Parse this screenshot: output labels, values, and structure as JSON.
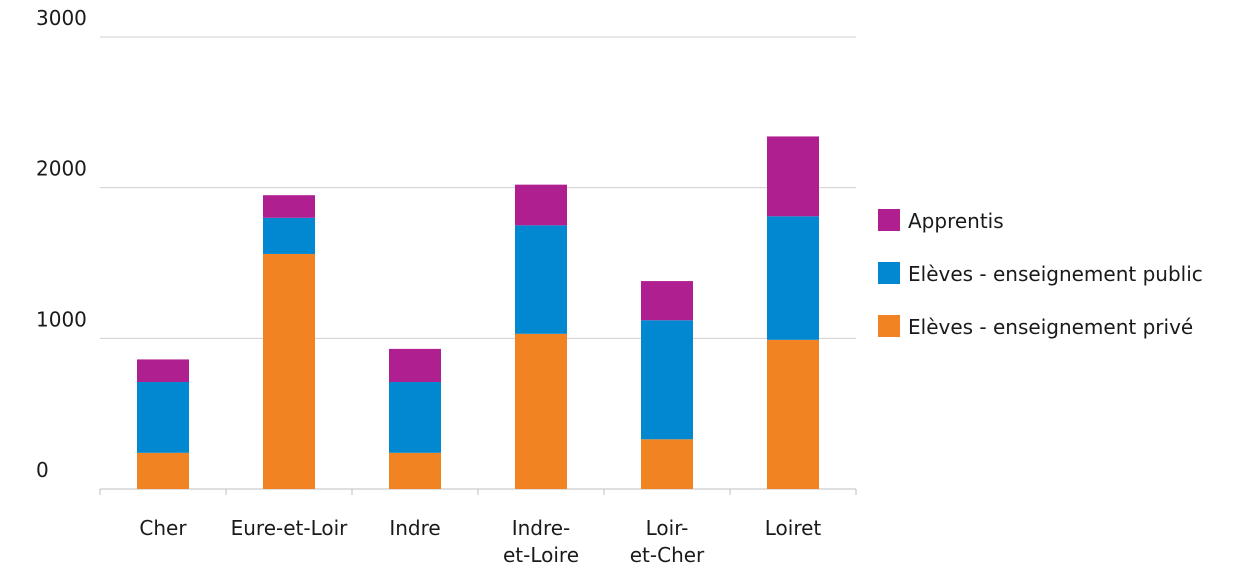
{
  "chart_data": {
    "type": "bar",
    "stacked": true,
    "title": "",
    "xlabel": "",
    "ylabel": "",
    "ylim": [
      0,
      3000
    ],
    "yticks": [
      "0",
      "1000",
      "2000",
      "3000"
    ],
    "grid": true,
    "legend_position": "right",
    "categories": [
      [
        "Cher"
      ],
      [
        "Eure-et-Loir"
      ],
      [
        "Indre"
      ],
      [
        "Indre-",
        "et-Loire"
      ],
      [
        "Loir-",
        "et-Cher"
      ],
      [
        "Loiret"
      ]
    ],
    "series": [
      {
        "name": "Elèves - enseignement privé",
        "color": "#f28322",
        "values": [
          240,
          1560,
          240,
          1030,
          330,
          990
        ]
      },
      {
        "name": "Elèves - enseignement public",
        "color": "#0288d1",
        "values": [
          470,
          240,
          470,
          720,
          790,
          820
        ]
      },
      {
        "name": "Apprentis",
        "color": "#b01f8f",
        "values": [
          150,
          150,
          220,
          270,
          260,
          530
        ]
      }
    ],
    "legend_order": [
      2,
      1,
      0
    ]
  }
}
